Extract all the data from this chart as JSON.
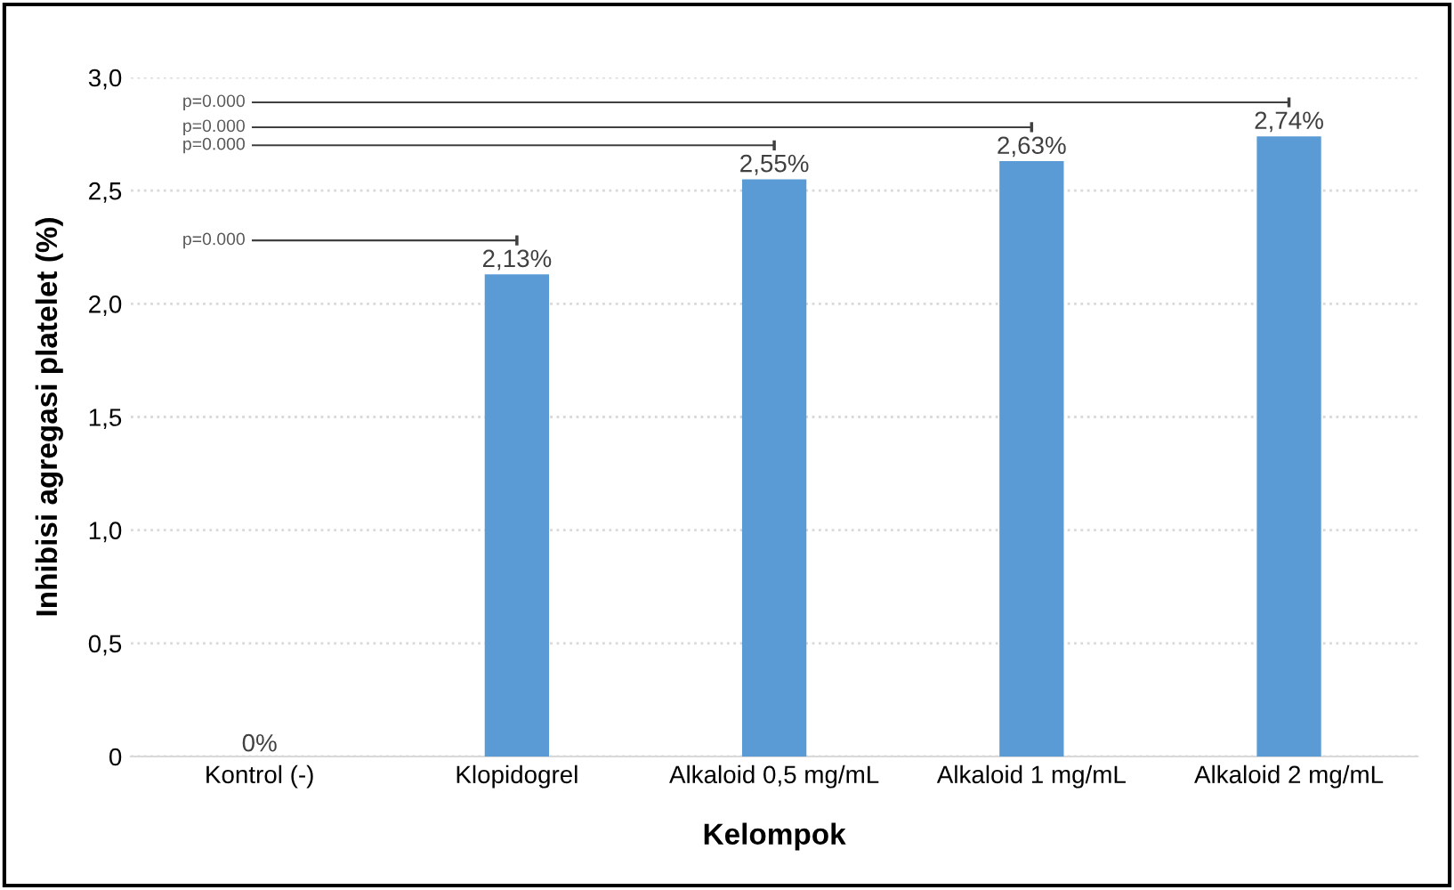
{
  "chart_data": {
    "type": "bar",
    "xlabel": "Kelompok",
    "ylabel": "Inhibisi agregasi platelet (%)",
    "categories": [
      "Kontrol (-)",
      "Klopidogrel",
      "Alkaloid 0,5 mg/mL",
      "Alkaloid 1 mg/mL",
      "Alkaloid 2 mg/mL"
    ],
    "values": [
      0,
      2.13,
      2.55,
      2.63,
      2.74
    ],
    "value_labels": [
      "0%",
      "2,13%",
      "2,55%",
      "2,63%",
      "2,74%"
    ],
    "color": "#5b9bd5",
    "ylim": [
      0,
      3.0
    ],
    "yticks": [
      {
        "value": 0,
        "label": "0"
      },
      {
        "value": 0.5,
        "label": "0,5"
      },
      {
        "value": 1.0,
        "label": "1,0"
      },
      {
        "value": 1.5,
        "label": "1,5"
      },
      {
        "value": 2.0,
        "label": "2,0"
      },
      {
        "value": 2.5,
        "label": "2,5"
      },
      {
        "value": 3.0,
        "label": "3,0"
      }
    ],
    "grid": "y",
    "annotations": [
      "p=0.000",
      "p=0.000",
      "p=0.000",
      "p=0.000"
    ]
  }
}
